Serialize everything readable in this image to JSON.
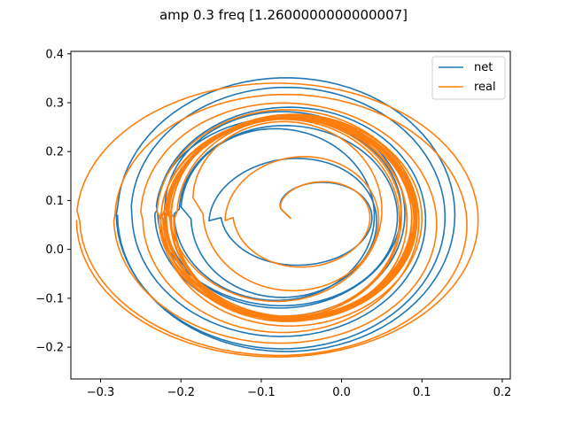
{
  "figure": {
    "title": "amp 0.3 freq [1.2600000000000007]"
  },
  "chart_data": {
    "type": "line",
    "title": "amp 0.3 freq [1.2600000000000007]",
    "xlabel": "",
    "ylabel": "",
    "xlim": [
      -0.337,
      0.21
    ],
    "ylim": [
      -0.265,
      0.405
    ],
    "x_ticks": [
      -0.3,
      -0.2,
      -0.1,
      0.0,
      0.1,
      0.2
    ],
    "x_tick_labels": [
      "−0.3",
      "−0.2",
      "−0.1",
      "0.0",
      "0.1",
      "0.2"
    ],
    "y_ticks": [
      -0.2,
      -0.1,
      0.0,
      0.1,
      0.2,
      0.3,
      0.4
    ],
    "y_tick_labels": [
      "−0.2",
      "−0.1",
      "0.0",
      "0.1",
      "0.2",
      "0.3",
      "0.4"
    ],
    "grid": false,
    "legend_position": "top-right",
    "series": [
      {
        "name": "net",
        "color": "#1f77b4",
        "start": [
          -0.063,
          0.063
        ],
        "rings": [
          {
            "cx": -0.069,
            "cy": 0.071,
            "rx": 0.21,
            "ry": 0.28
          },
          {
            "cx": -0.072,
            "cy": 0.07,
            "rx": 0.19,
            "ry": 0.255
          },
          {
            "cx": -0.07,
            "cy": 0.065,
            "rx": 0.16,
            "ry": 0.215
          },
          {
            "cx": -0.075,
            "cy": 0.08,
            "rx": 0.145,
            "ry": 0.2
          },
          {
            "cx": -0.076,
            "cy": 0.076,
            "rx": 0.155,
            "ry": 0.19
          },
          {
            "cx": -0.072,
            "cy": 0.07,
            "rx": 0.13,
            "ry": 0.18
          },
          {
            "cx": -0.085,
            "cy": 0.075,
            "rx": 0.115,
            "ry": 0.17
          },
          {
            "cx": -0.06,
            "cy": 0.05,
            "rx": 0.105,
            "ry": 0.12
          },
          {
            "cx": -0.03,
            "cy": 0.08,
            "rx": 0.045,
            "ry": 0.04
          }
        ]
      },
      {
        "name": "real",
        "color": "#ff7f0e",
        "start": [
          -0.063,
          0.063
        ],
        "rings": [
          {
            "cx": -0.08,
            "cy": 0.06,
            "rx": 0.25,
            "ry": 0.28
          },
          {
            "cx": -0.072,
            "cy": 0.055,
            "rx": 0.21,
            "ry": 0.255
          },
          {
            "cx": -0.075,
            "cy": 0.06,
            "rx": 0.175,
            "ry": 0.235
          },
          {
            "cx": -0.07,
            "cy": 0.062,
            "rx": 0.16,
            "ry": 0.22
          },
          {
            "cx": -0.06,
            "cy": 0.06,
            "rx": 0.165,
            "ry": 0.21
          },
          {
            "cx": -0.065,
            "cy": 0.065,
            "rx": 0.15,
            "ry": 0.2
          },
          {
            "cx": -0.062,
            "cy": 0.066,
            "rx": 0.15,
            "ry": 0.212
          },
          {
            "cx": -0.062,
            "cy": 0.064,
            "rx": 0.155,
            "ry": 0.206
          },
          {
            "cx": -0.066,
            "cy": 0.063,
            "rx": 0.15,
            "ry": 0.208
          },
          {
            "cx": -0.058,
            "cy": 0.064,
            "rx": 0.158,
            "ry": 0.214
          },
          {
            "cx": -0.064,
            "cy": 0.068,
            "rx": 0.152,
            "ry": 0.202
          },
          {
            "cx": -0.068,
            "cy": 0.06,
            "rx": 0.145,
            "ry": 0.215
          },
          {
            "cx": -0.06,
            "cy": 0.07,
            "rx": 0.16,
            "ry": 0.198
          },
          {
            "cx": -0.07,
            "cy": 0.06,
            "rx": 0.155,
            "ry": 0.21
          },
          {
            "cx": -0.065,
            "cy": 0.062,
            "rx": 0.14,
            "ry": 0.205
          },
          {
            "cx": -0.071,
            "cy": 0.066,
            "rx": 0.148,
            "ry": 0.201
          },
          {
            "cx": -0.059,
            "cy": 0.061,
            "rx": 0.162,
            "ry": 0.209
          },
          {
            "cx": -0.067,
            "cy": 0.067,
            "rx": 0.15,
            "ry": 0.203
          },
          {
            "cx": -0.075,
            "cy": 0.065,
            "rx": 0.14,
            "ry": 0.2
          },
          {
            "cx": -0.075,
            "cy": 0.095,
            "rx": 0.11,
            "ry": 0.16
          },
          {
            "cx": -0.05,
            "cy": 0.05,
            "rx": 0.095,
            "ry": 0.125
          },
          {
            "cx": -0.03,
            "cy": 0.08,
            "rx": 0.045,
            "ry": 0.04
          }
        ]
      }
    ]
  }
}
